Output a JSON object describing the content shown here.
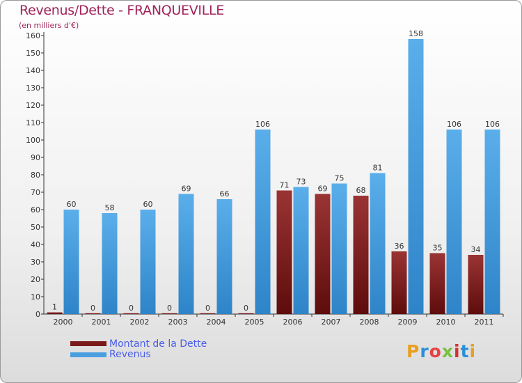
{
  "chart_data": {
    "type": "bar",
    "title": "Revenus/Dette - FRANQUEVILLE",
    "subtitle": "(en milliers d'€)",
    "categories": [
      "2000",
      "2001",
      "2002",
      "2003",
      "2004",
      "2005",
      "2006",
      "2007",
      "2008",
      "2009",
      "2010",
      "2011"
    ],
    "series": [
      {
        "name": "Montant de la Dette",
        "color": "#7a1a1a",
        "values": [
          1,
          0,
          0,
          0,
          0,
          0,
          71,
          69,
          68,
          36,
          35,
          34
        ]
      },
      {
        "name": "Revenus",
        "color": "#4a9fe0",
        "values": [
          60,
          58,
          60,
          69,
          66,
          106,
          73,
          75,
          81,
          158,
          106,
          106
        ]
      }
    ],
    "ylim": [
      0,
      160
    ],
    "yticks": [
      0,
      10,
      20,
      30,
      40,
      50,
      60,
      70,
      80,
      90,
      100,
      110,
      120,
      130,
      140,
      150,
      160
    ],
    "grid": false,
    "legend_position": "bottom-left"
  },
  "logo": {
    "text": "Proxiti",
    "letter_colors": [
      "#e8a020",
      "#2a8fd8",
      "#e84040",
      "#7cc040",
      "#d83030",
      "#2a8fd8",
      "#e8a020"
    ]
  }
}
